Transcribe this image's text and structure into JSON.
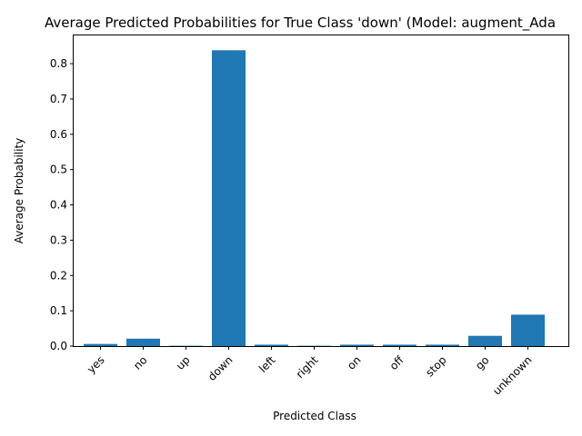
{
  "chart_data": {
    "type": "bar",
    "title": "Average Predicted Probabilities for True Class 'down' (Model: augment_Ada",
    "xlabel": "Predicted Class",
    "ylabel": "Average Probability",
    "categories": [
      "yes",
      "no",
      "up",
      "down",
      "left",
      "right",
      "on",
      "off",
      "stop",
      "go",
      "unknown"
    ],
    "values": [
      0.006,
      0.021,
      0.001,
      0.838,
      0.004,
      0.001,
      0.004,
      0.004,
      0.004,
      0.029,
      0.089
    ],
    "ylim": [
      0,
      0.88
    ],
    "yticks": [
      0.0,
      0.1,
      0.2,
      0.3,
      0.4,
      0.5,
      0.6,
      0.7,
      0.8
    ],
    "ytick_labels": [
      "0.0",
      "0.1",
      "0.2",
      "0.3",
      "0.4",
      "0.5",
      "0.6",
      "0.7",
      "0.8"
    ],
    "bar_color": "#1f77b4",
    "grid": false,
    "legend": "none"
  }
}
